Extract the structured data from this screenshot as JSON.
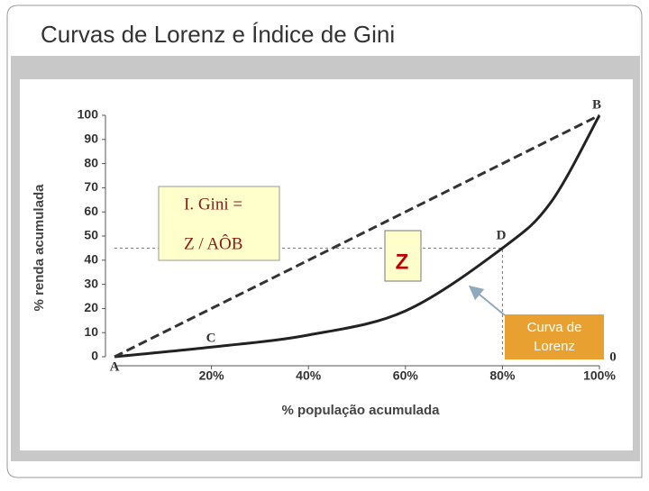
{
  "slide_title": "Curvas de Lorenz e Índice de Gini",
  "chart_data": {
    "type": "line",
    "x_label": "% população acumulada",
    "y_label": "% renda acumulada",
    "x": [
      0,
      20,
      40,
      60,
      80,
      90,
      100
    ],
    "series": [
      {
        "name": "Curva de Lorenz",
        "color": "#222222",
        "values": [
          0,
          4,
          9,
          19,
          45,
          64,
          100
        ]
      },
      {
        "color": "#333333",
        "dashed": true,
        "values": [
          0,
          20,
          40,
          60,
          80,
          90,
          100
        ]
      }
    ],
    "xlim": [
      0,
      100
    ],
    "xticks": [
      {
        "value": 20,
        "label": "20%"
      },
      {
        "value": 40,
        "label": "40%"
      },
      {
        "value": 60,
        "label": "60%"
      },
      {
        "value": 80,
        "label": "80%"
      },
      {
        "value": 100,
        "label": "100%"
      }
    ],
    "ylim": [
      0,
      100
    ],
    "yticks": [
      0,
      10,
      20,
      30,
      40,
      50,
      60,
      70,
      80,
      90,
      100
    ],
    "reference_point": {
      "x": 80,
      "y": 45
    },
    "annotations": [
      "A",
      "B",
      "C",
      "D",
      "0"
    ],
    "gini_box": [
      "I. Gini =",
      "Z / AÔB"
    ],
    "area_label": "Z"
  }
}
